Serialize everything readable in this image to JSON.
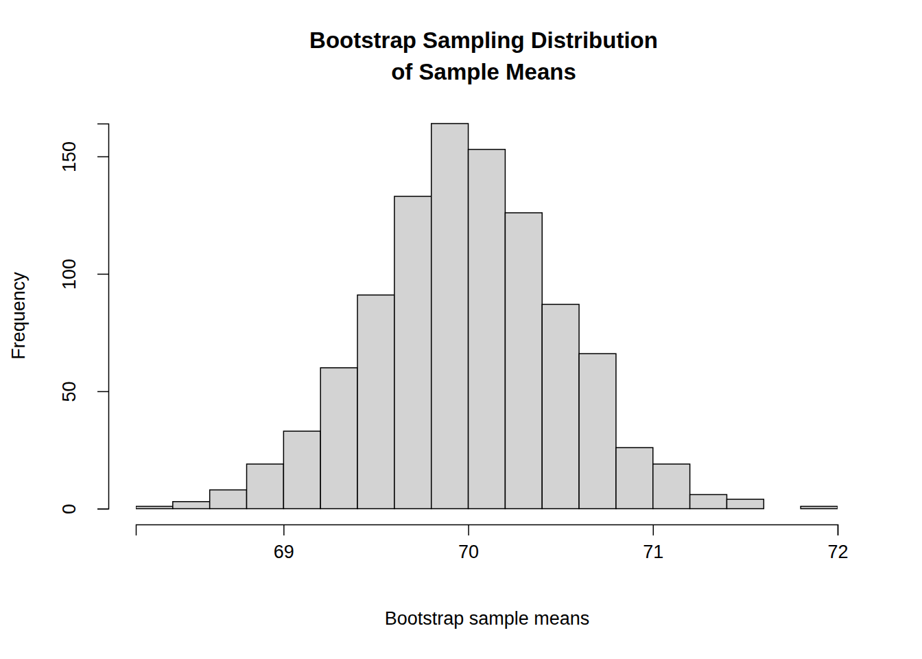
{
  "chart_data": {
    "type": "histogram",
    "title": "Bootstrap Sampling Distribution\nof Sample Means",
    "x_label": "Bootstrap sample means",
    "y_label": "Frequency",
    "bins": [
      68.2,
      68.4,
      68.6,
      68.8,
      69.0,
      69.2,
      69.4,
      69.6,
      69.8,
      70.0,
      70.2,
      70.4,
      70.6,
      70.8,
      71.0,
      71.2,
      71.4,
      71.6,
      71.8,
      72.0
    ],
    "values": [
      1,
      3,
      8,
      19,
      33,
      60,
      91,
      133,
      164,
      153,
      126,
      87,
      66,
      26,
      19,
      6,
      4,
      0,
      1
    ],
    "color": "#d3d3d3",
    "xlim": [
      68.2,
      72
    ],
    "ylim": [
      0,
      164
    ],
    "xticks": [
      69,
      70,
      71,
      72
    ],
    "yticks": [
      0,
      50,
      100,
      150
    ],
    "grid": false
  }
}
